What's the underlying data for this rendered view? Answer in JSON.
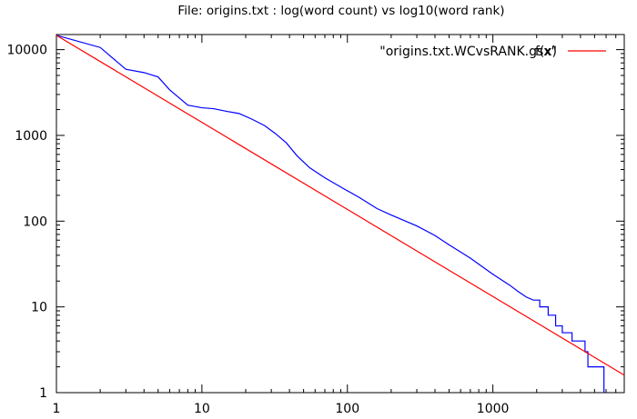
{
  "chart_data": {
    "type": "line",
    "title": "File: origins.txt : log(word count) vs log10(word rank)",
    "xlabel": "",
    "ylabel": "",
    "x_scale": "log",
    "y_scale": "log",
    "xlim": [
      1,
      8000
    ],
    "ylim": [
      1,
      15000
    ],
    "grid": false,
    "legend_position": "top-right",
    "x_ticks": [
      1,
      10,
      100,
      1000
    ],
    "x_tick_labels": [
      "1",
      "10",
      "100",
      "1000"
    ],
    "y_ticks": [
      1,
      10,
      100,
      1000,
      10000
    ],
    "y_tick_labels": [
      "1",
      "10",
      "100",
      "1000",
      "10000"
    ],
    "series": [
      {
        "name": "\"origins.txt.WCvsRANK.gsx\"",
        "color": "#0000ff",
        "style": "steps",
        "points": [
          [
            1,
            14700
          ],
          [
            2,
            10600
          ],
          [
            3,
            5900
          ],
          [
            4,
            5400
          ],
          [
            5,
            4800
          ],
          [
            6,
            3400
          ],
          [
            8,
            2250
          ],
          [
            10,
            2100
          ],
          [
            12,
            2050
          ],
          [
            15,
            1900
          ],
          [
            18,
            1800
          ],
          [
            22,
            1550
          ],
          [
            27,
            1300
          ],
          [
            32,
            1050
          ],
          [
            38,
            820
          ],
          [
            45,
            580
          ],
          [
            55,
            420
          ],
          [
            70,
            320
          ],
          [
            90,
            250
          ],
          [
            120,
            190
          ],
          [
            160,
            140
          ],
          [
            200,
            118
          ],
          [
            300,
            88
          ],
          [
            400,
            68
          ],
          [
            500,
            53
          ],
          [
            700,
            37
          ],
          [
            1000,
            24
          ],
          [
            1300,
            18
          ],
          [
            1500,
            15
          ],
          [
            1700,
            13
          ],
          [
            1900,
            12
          ],
          [
            2100,
            10
          ],
          [
            2400,
            8
          ],
          [
            2700,
            6
          ],
          [
            3000,
            5
          ],
          [
            3500,
            4
          ],
          [
            4300,
            3
          ],
          [
            4500,
            2
          ],
          [
            5800,
            1
          ]
        ]
      },
      {
        "name": "f(x)",
        "color": "#ff0000",
        "style": "line",
        "points": [
          [
            1,
            14700
          ],
          [
            8000,
            1.6
          ]
        ]
      }
    ]
  }
}
